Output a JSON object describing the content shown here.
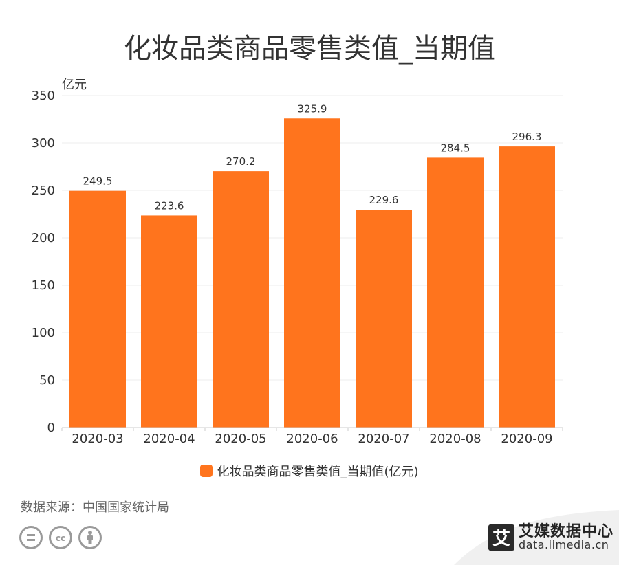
{
  "title": "化妆品类商品零售类值_当期值",
  "source": "数据来源：中国国家统计局",
  "brand": {
    "mark": "艾",
    "name": "艾媒数据中心",
    "url": "data.iimedia.cn"
  },
  "license_icons": [
    "cc-equal-icon",
    "cc-logo-icon",
    "cc-person-icon"
  ],
  "colors": {
    "bar": "#FF741D",
    "axis": "#cccccc",
    "grid": "#eeeeee",
    "text": "#333333"
  },
  "chart_data": {
    "type": "bar",
    "title": "化妆品类商品零售类值_当期值",
    "ylabel": "亿元",
    "xlabel": "",
    "categories": [
      "2020-03",
      "2020-04",
      "2020-05",
      "2020-06",
      "2020-07",
      "2020-08",
      "2020-09"
    ],
    "series": [
      {
        "name": "化妆品类商品零售类值_当期值(亿元)",
        "values": [
          249.5,
          223.6,
          270.2,
          325.9,
          229.6,
          284.5,
          296.3
        ]
      }
    ],
    "ylim": [
      0,
      350
    ],
    "yticks": [
      0,
      50,
      100,
      150,
      200,
      250,
      300,
      350
    ],
    "grid": true,
    "legend": "bottom-center"
  }
}
